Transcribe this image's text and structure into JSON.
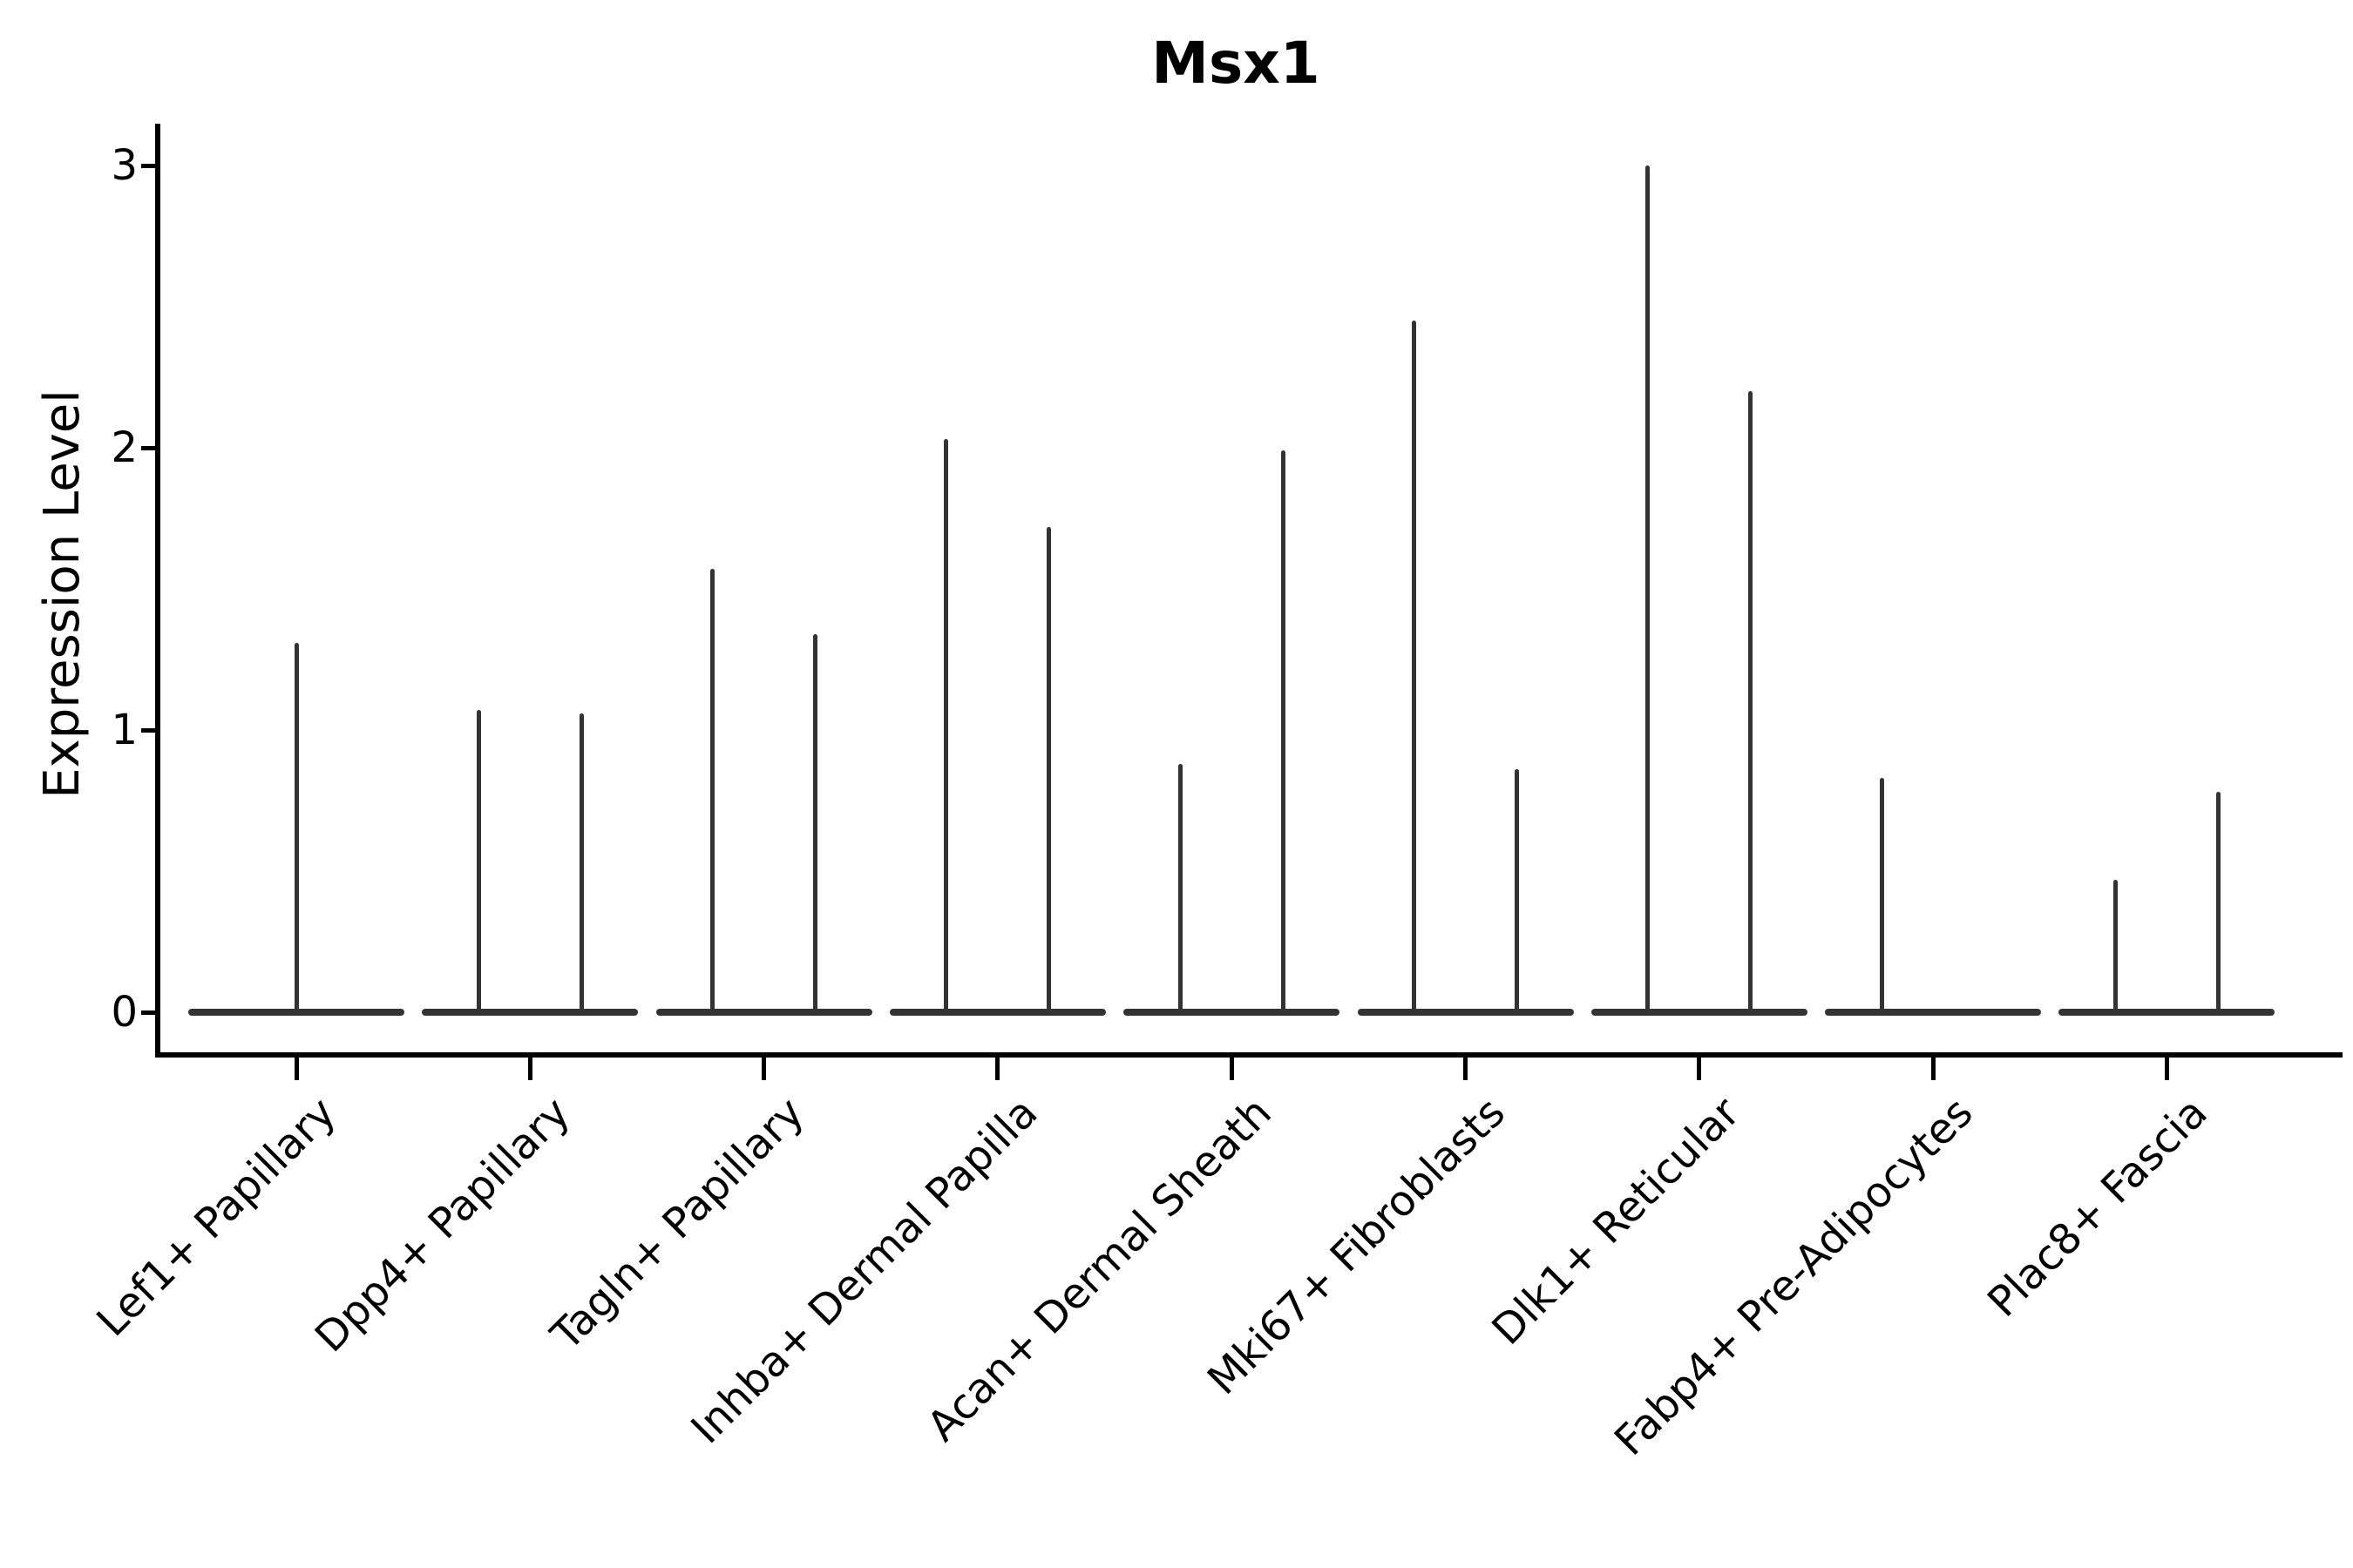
{
  "title": "Msx1",
  "axes": {
    "y_label": "Expression Level",
    "y_tick_labels": [
      "0",
      "1",
      "2",
      "3"
    ],
    "x_tick_labels": [
      "Lef1+ Papillary",
      "Dpp4+ Papillary",
      "Tagln+ Papillary",
      "Inhba+ Dermal Papilla",
      "Acan+ Dermal Sheath",
      "Mki67+ Fibroblasts",
      "Dlk1+ Reticular",
      "Fabp4+ Pre-Adipocytes",
      "Plac8+ Fascia"
    ]
  },
  "chart_data": {
    "type": "violin",
    "title": "Msx1",
    "xlabel": "",
    "ylabel": "Expression Level",
    "ylim": [
      0,
      3.05
    ],
    "yticks": [
      0,
      1,
      2,
      3
    ],
    "grid": false,
    "legend": null,
    "categories": [
      "Lef1+ Papillary",
      "Dpp4+ Papillary",
      "Tagln+ Papillary",
      "Inhba+ Dermal Papilla",
      "Acan+ Dermal Sheath",
      "Mki67+ Fibroblasts",
      "Dlk1+ Reticular",
      "Fabp4+ Pre-Adipocytes",
      "Plac8+ Fascia"
    ],
    "violins": [
      {
        "category": "Lef1+ Papillary",
        "spikes": [
          {
            "offset_frac": 0,
            "max_expression": 1.31
          }
        ]
      },
      {
        "category": "Dpp4+ Papillary",
        "spikes": [
          {
            "offset_frac": -0.22,
            "max_expression": 1.07
          },
          {
            "offset_frac": 0.22,
            "max_expression": 1.06
          }
        ]
      },
      {
        "category": "Tagln+ Papillary",
        "spikes": [
          {
            "offset_frac": -0.22,
            "max_expression": 1.57
          },
          {
            "offset_frac": 0.22,
            "max_expression": 1.34
          }
        ]
      },
      {
        "category": "Inhba+ Dermal Papilla",
        "spikes": [
          {
            "offset_frac": -0.22,
            "max_expression": 2.03
          },
          {
            "offset_frac": 0.22,
            "max_expression": 1.72
          }
        ]
      },
      {
        "category": "Acan+ Dermal Sheath",
        "spikes": [
          {
            "offset_frac": -0.22,
            "max_expression": 0.88
          },
          {
            "offset_frac": 0.22,
            "max_expression": 1.99
          }
        ]
      },
      {
        "category": "Mki67+ Fibroblasts",
        "spikes": [
          {
            "offset_frac": -0.22,
            "max_expression": 2.45
          },
          {
            "offset_frac": 0.22,
            "max_expression": 0.86
          }
        ]
      },
      {
        "category": "Dlk1+ Reticular",
        "spikes": [
          {
            "offset_frac": -0.22,
            "max_expression": 3.0
          },
          {
            "offset_frac": 0.22,
            "max_expression": 2.2
          }
        ]
      },
      {
        "category": "Fabp4+ Pre-Adipocytes",
        "spikes": [
          {
            "offset_frac": -0.22,
            "max_expression": 0.83
          }
        ]
      },
      {
        "category": "Plac8+ Fascia",
        "spikes": [
          {
            "offset_frac": -0.22,
            "max_expression": 0.47
          },
          {
            "offset_frac": 0.22,
            "max_expression": 0.78
          }
        ]
      }
    ],
    "style_notes": {
      "violin_shape": "flat wide base at zero expression with thin vertical spike up to max expression",
      "base_halfwidth_frac": 0.46,
      "violin_color": "#333333",
      "axis_color": "#000000",
      "background_color": "#ffffff",
      "x_label_rotation_deg": 45,
      "legend_position": "none"
    }
  }
}
